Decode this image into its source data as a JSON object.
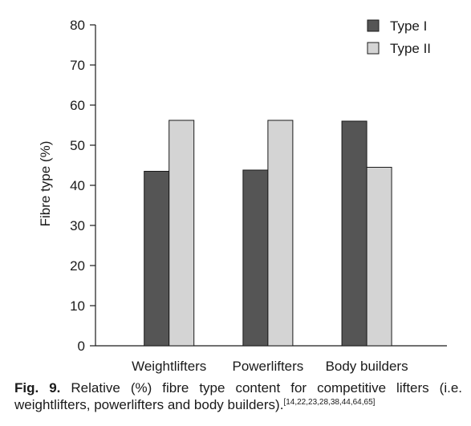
{
  "chart_data": {
    "type": "bar",
    "categories": [
      "Weightlifters",
      "Powerlifters",
      "Body builders"
    ],
    "series": [
      {
        "name": "Type I",
        "values": [
          43.5,
          43.8,
          56.0
        ],
        "color": "#555555"
      },
      {
        "name": "Type II",
        "values": [
          56.2,
          56.2,
          44.5
        ],
        "color": "#d4d4d4"
      }
    ],
    "ylabel": "Fibre type (%)",
    "xlabel": "",
    "ylim": [
      0,
      80
    ],
    "yticks": [
      0,
      10,
      20,
      30,
      40,
      50,
      60,
      70,
      80
    ],
    "grid": false,
    "legend_position": "top-right"
  },
  "caption": {
    "label": "Fig. 9.",
    "text": " Relative (%) fibre type content for competitive lifters (i.e. weightlifters, powerlifters and body builders).",
    "refs": "[14,22,23,28,38,44,64,65]"
  }
}
